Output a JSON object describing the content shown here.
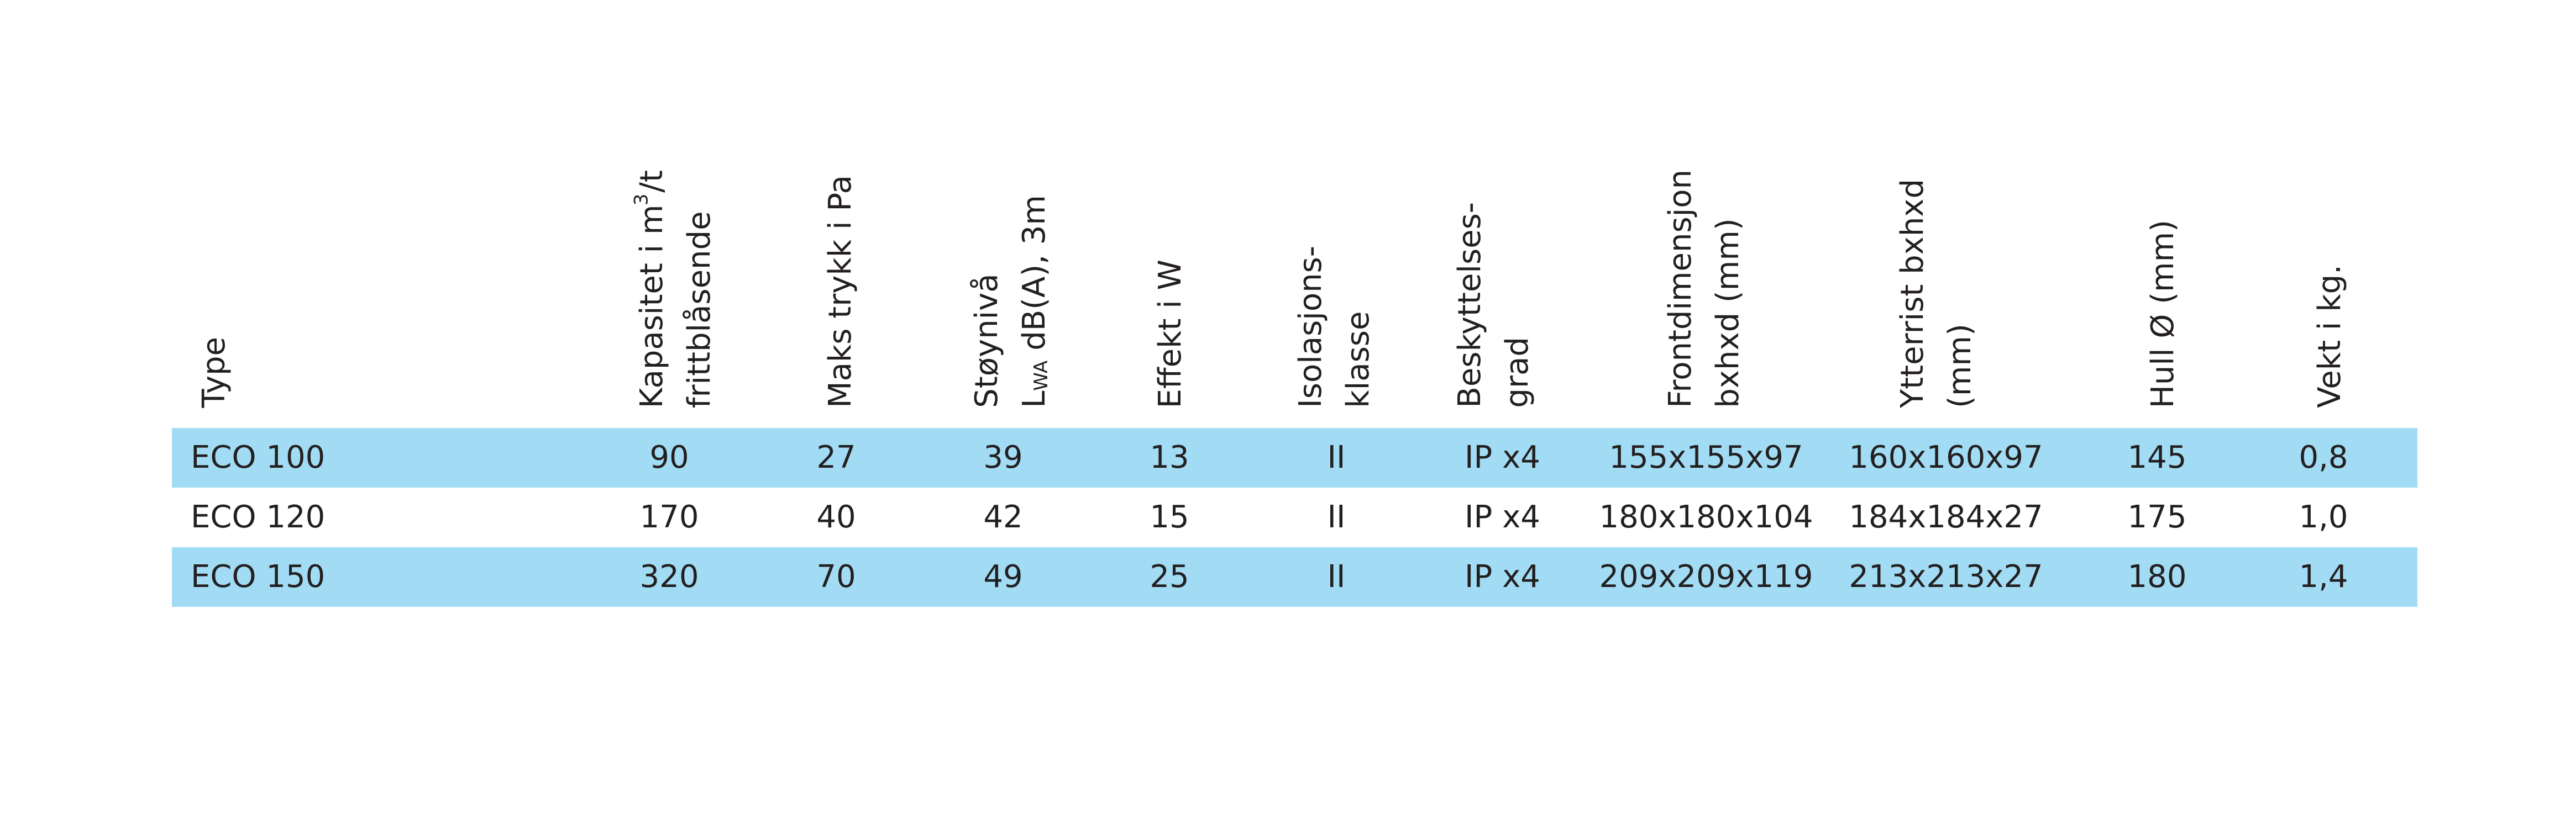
{
  "table": {
    "headers": {
      "type": "Type",
      "capacity_line1": "Kapasitet i m",
      "capacity_sup": "3",
      "capacity_line1_end": "/t",
      "capacity_line2": "frittblåsende",
      "pressure": "Maks trykk i Pa",
      "noise_line1": "Støynivå",
      "noise_L": "L",
      "noise_sub": "WA",
      "noise_line2_end": " dB(A), 3m",
      "power": "Effekt i W",
      "insulation_line1": "Isolasjons-",
      "insulation_line2": "klasse",
      "protection_line1": "Beskyttelses-",
      "protection_line2": "grad",
      "front_line1": "Frontdimensjon",
      "front_line2": "bxhxd (mm)",
      "outer_line1": "Ytterrist bxhxd",
      "outer_line2": "(mm)",
      "hole": "Hull Ø (mm)",
      "weight": "Vekt i kg."
    },
    "rows": [
      {
        "type": "ECO 100",
        "capacity": "90",
        "pressure": "27",
        "noise": "39",
        "power": "13",
        "insulation": "II",
        "protection": "IP x4",
        "front": "155x155x97",
        "outer": "160x160x97",
        "hole": "145",
        "weight": "0,8"
      },
      {
        "type": "ECO 120",
        "capacity": "170",
        "pressure": "40",
        "noise": "42",
        "power": "15",
        "insulation": "II",
        "protection": "IP x4",
        "front": "180x180x104",
        "outer": "184x184x27",
        "hole": "175",
        "weight": "1,0"
      },
      {
        "type": "ECO 150",
        "capacity": "320",
        "pressure": "70",
        "noise": "49",
        "power": "25",
        "insulation": "II",
        "protection": "IP x4",
        "front": "209x209x119",
        "outer": "213x213x27",
        "hole": "180",
        "weight": "1,4"
      }
    ],
    "colors": {
      "row_shading": "#a1dcf4",
      "text": "#231f20",
      "background": "#ffffff"
    }
  }
}
